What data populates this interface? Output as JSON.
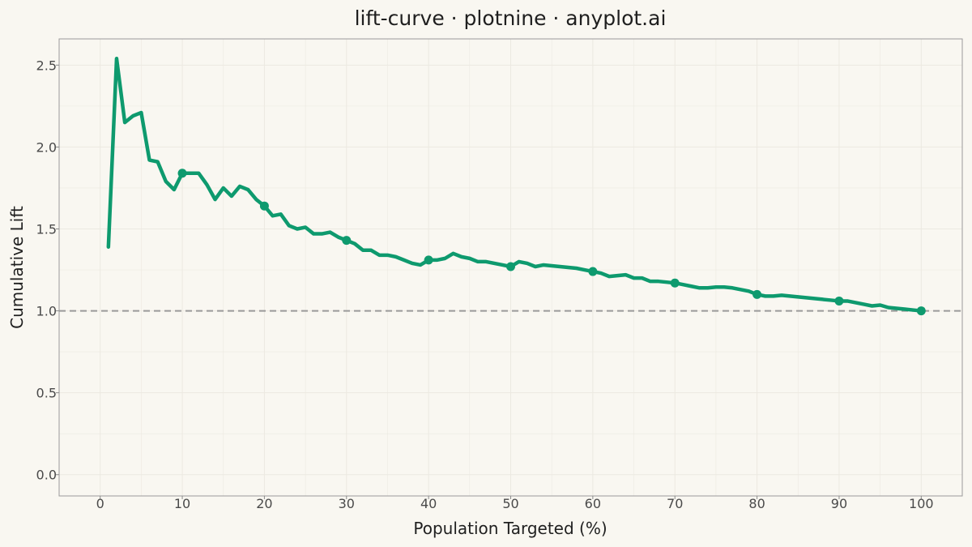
{
  "chart_data": {
    "type": "line",
    "title": "lift-curve · plotnine · anyplot.ai",
    "xlabel": "Population Targeted (%)",
    "ylabel": "Cumulative Lift",
    "xlim": [
      -5,
      105
    ],
    "ylim": [
      -0.13,
      2.66
    ],
    "x_ticks": [
      0,
      10,
      20,
      30,
      40,
      50,
      60,
      70,
      80,
      90,
      100
    ],
    "y_ticks": [
      0.0,
      0.5,
      1.0,
      1.5,
      2.0,
      2.5
    ],
    "x_tick_labels": [
      "0",
      "10",
      "20",
      "30",
      "40",
      "50",
      "60",
      "70",
      "80",
      "90",
      "100"
    ],
    "y_tick_labels": [
      "0.0",
      "0.5",
      "1.0",
      "1.5",
      "2.0",
      "2.5"
    ],
    "grid": true,
    "baseline": 1.0,
    "colors": {
      "series": "#0E9A6E",
      "baseline": "#9A9A9A",
      "background": "#F9F7F1",
      "grid": "#ECE9E1",
      "frame": "#9A9A9A"
    },
    "series": [
      {
        "x": [
          1,
          2,
          3,
          4,
          5,
          6,
          7,
          8,
          9,
          10,
          11,
          12,
          13,
          14,
          15,
          16,
          17,
          18,
          19,
          20,
          21,
          22,
          23,
          24,
          25,
          26,
          27,
          28,
          29,
          30,
          31,
          32,
          33,
          34,
          35,
          36,
          37,
          38,
          39,
          40,
          41,
          42,
          43,
          44,
          45,
          46,
          47,
          48,
          49,
          50,
          51,
          52,
          53,
          54,
          55,
          56,
          57,
          58,
          59,
          60,
          61,
          62,
          63,
          64,
          65,
          66,
          67,
          68,
          69,
          70,
          71,
          72,
          73,
          74,
          75,
          76,
          77,
          78,
          79,
          80,
          81,
          82,
          83,
          84,
          85,
          86,
          87,
          88,
          89,
          90,
          91,
          92,
          93,
          94,
          95,
          96,
          97,
          98,
          99,
          100
        ],
        "y": [
          1.39,
          2.54,
          2.15,
          2.19,
          2.21,
          1.92,
          1.91,
          1.79,
          1.74,
          1.84,
          1.84,
          1.84,
          1.77,
          1.68,
          1.75,
          1.7,
          1.76,
          1.74,
          1.68,
          1.64,
          1.58,
          1.59,
          1.52,
          1.5,
          1.51,
          1.47,
          1.47,
          1.48,
          1.45,
          1.43,
          1.41,
          1.37,
          1.37,
          1.34,
          1.34,
          1.33,
          1.31,
          1.29,
          1.28,
          1.31,
          1.31,
          1.32,
          1.35,
          1.33,
          1.32,
          1.3,
          1.3,
          1.29,
          1.28,
          1.27,
          1.3,
          1.29,
          1.27,
          1.28,
          1.275,
          1.27,
          1.265,
          1.26,
          1.25,
          1.24,
          1.23,
          1.21,
          1.215,
          1.22,
          1.2,
          1.2,
          1.18,
          1.18,
          1.175,
          1.17,
          1.16,
          1.15,
          1.14,
          1.14,
          1.145,
          1.145,
          1.14,
          1.13,
          1.12,
          1.1,
          1.09,
          1.09,
          1.095,
          1.09,
          1.085,
          1.08,
          1.075,
          1.07,
          1.065,
          1.06,
          1.06,
          1.05,
          1.04,
          1.03,
          1.035,
          1.02,
          1.015,
          1.01,
          1.005,
          1.0
        ]
      }
    ],
    "markers_x": [
      10,
      20,
      30,
      40,
      50,
      60,
      70,
      80,
      90,
      100
    ]
  }
}
